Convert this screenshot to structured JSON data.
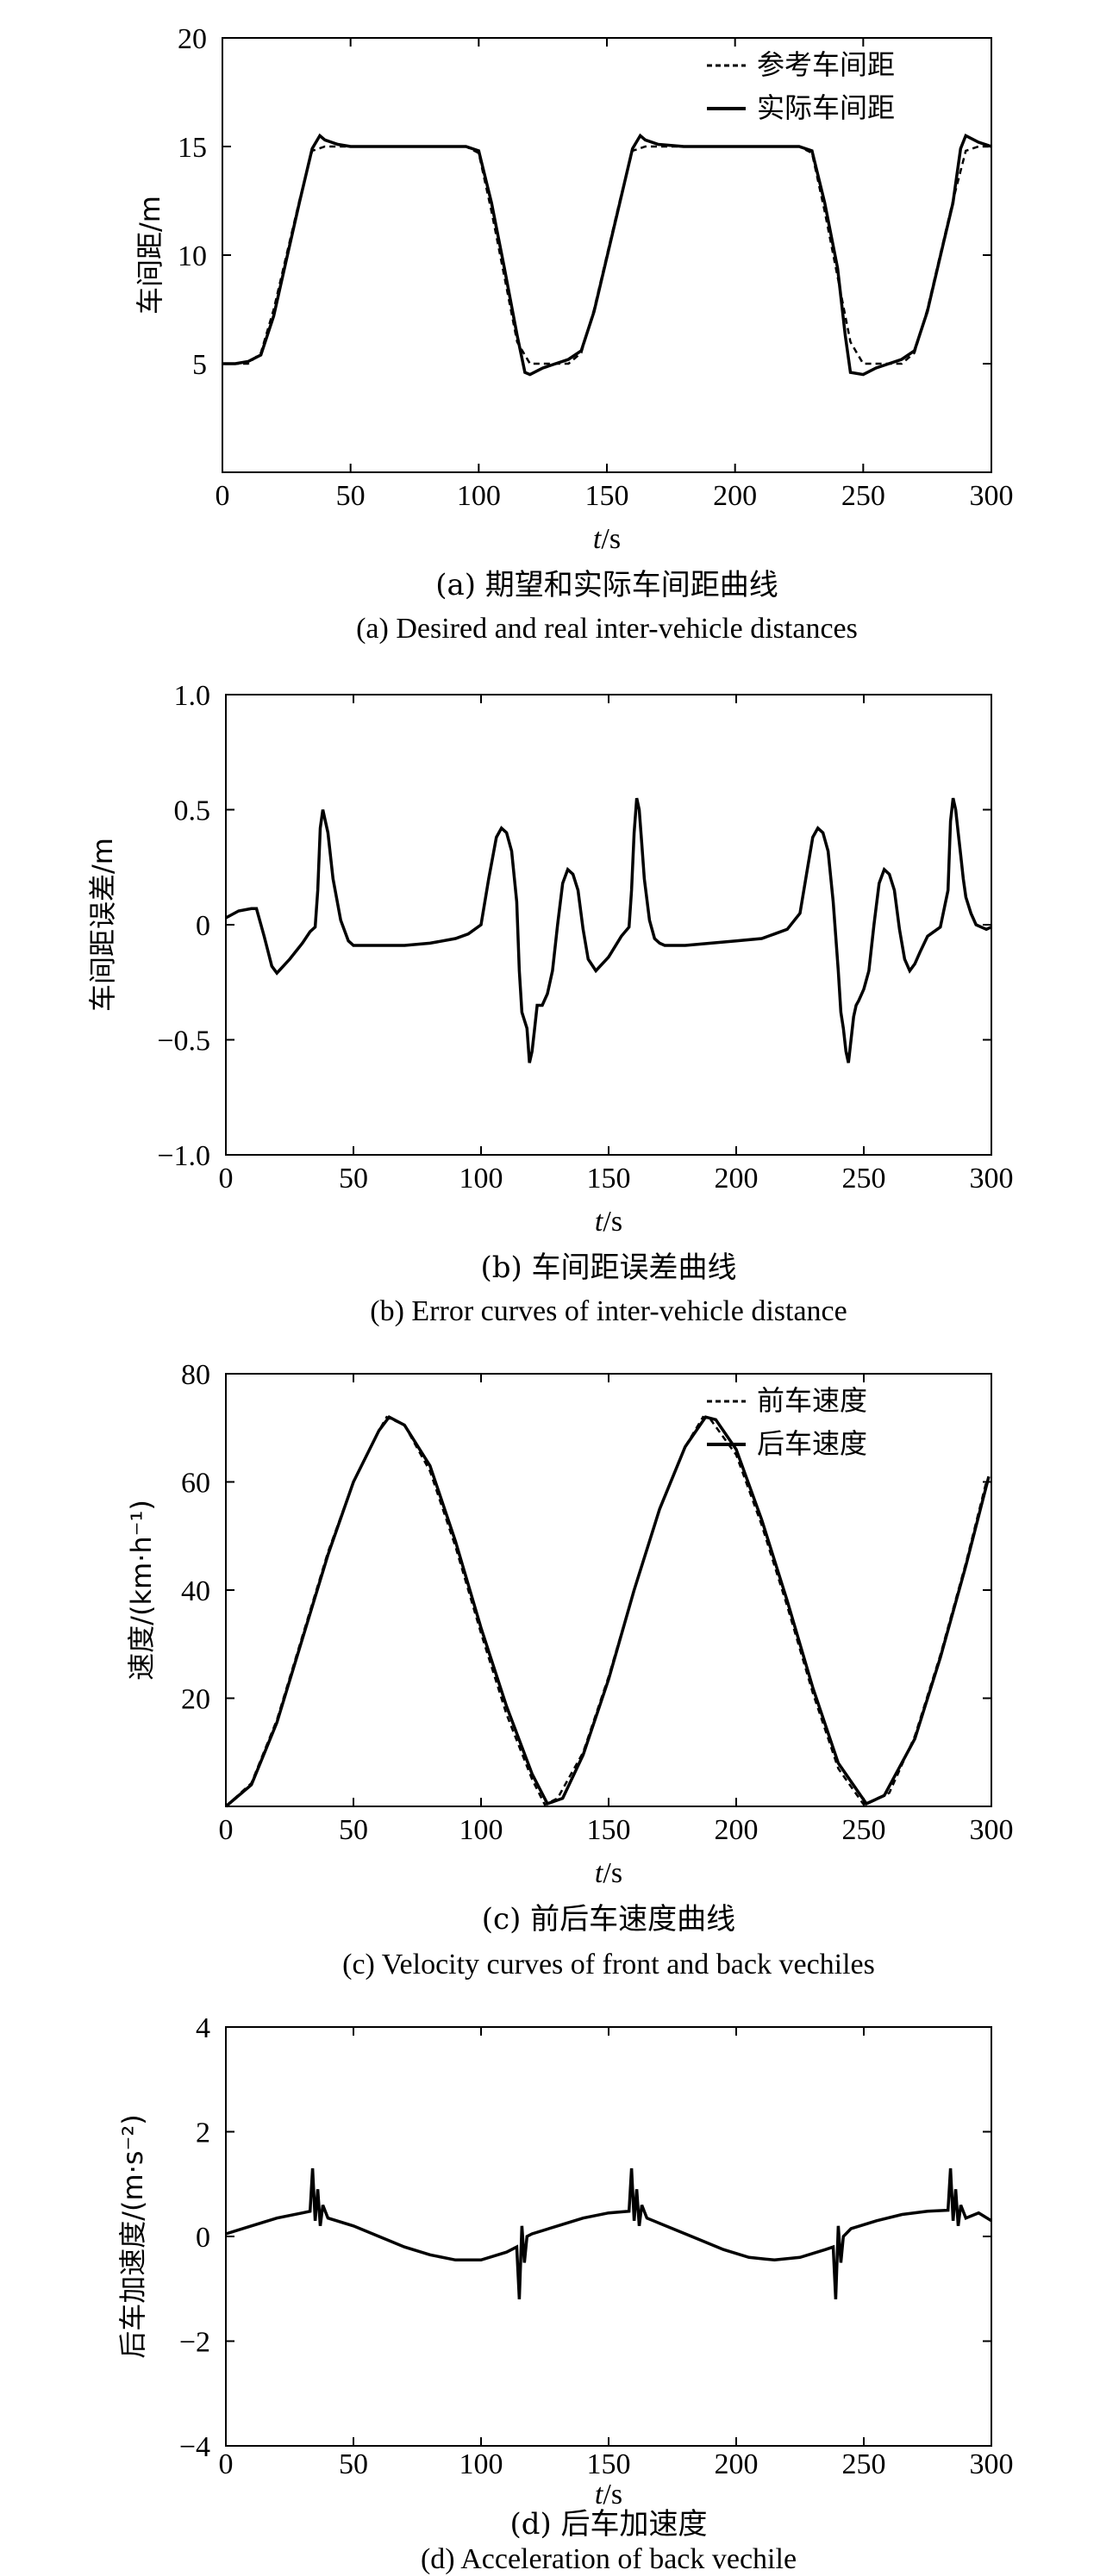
{
  "chart_data": [
    {
      "type": "line",
      "xlabel": "t/s",
      "ylabel": "车间距/m",
      "xlim": [
        0,
        300
      ],
      "ylim": [
        0,
        20
      ],
      "xticks": [
        "0",
        "50",
        "100",
        "150",
        "200",
        "250",
        "300"
      ],
      "yticks": [
        "5",
        "10",
        "15",
        "20"
      ],
      "caption_zh": "(a) 期望和实际车间距曲线",
      "caption_en": "(a) Desired and real inter-vehicle distances",
      "legend_position": "top-right",
      "series": [
        {
          "name": "参考车间距",
          "style": "dashed",
          "x": [
            0,
            5,
            10,
            15,
            20,
            25,
            30,
            35,
            40,
            45,
            50,
            60,
            70,
            80,
            90,
            95,
            100,
            105,
            110,
            115,
            120,
            125,
            130,
            135,
            140,
            145,
            150,
            155,
            160,
            165,
            170,
            180,
            190,
            200,
            210,
            220,
            225,
            230,
            235,
            240,
            245,
            250,
            255,
            260,
            265,
            270,
            275,
            280,
            285,
            290,
            295,
            300
          ],
          "y": [
            5,
            5,
            5,
            5.5,
            7.5,
            10,
            12.5,
            14.8,
            15,
            15,
            15,
            15,
            15,
            15,
            15,
            15,
            14.7,
            12,
            9,
            6,
            5,
            5,
            5,
            5,
            5.5,
            7.5,
            10,
            12.5,
            14.8,
            15,
            15,
            15,
            15,
            15,
            15,
            15,
            15,
            14.7,
            12,
            9,
            6,
            5,
            5,
            5,
            5,
            5.5,
            7.5,
            10,
            12.5,
            14.8,
            15,
            15
          ]
        },
        {
          "name": "实际车间距",
          "style": "solid",
          "x": [
            0,
            5,
            10,
            15,
            20,
            25,
            30,
            35,
            38,
            40,
            45,
            50,
            60,
            70,
            80,
            90,
            95,
            100,
            105,
            110,
            115,
            118,
            120,
            125,
            130,
            135,
            140,
            145,
            150,
            155,
            160,
            163,
            165,
            170,
            180,
            190,
            200,
            210,
            220,
            225,
            230,
            235,
            240,
            243,
            245,
            250,
            255,
            260,
            265,
            270,
            275,
            280,
            285,
            288,
            290,
            295,
            300
          ],
          "y": [
            5,
            5,
            5.1,
            5.4,
            7.2,
            9.8,
            12.4,
            14.9,
            15.5,
            15.3,
            15.1,
            15,
            15,
            15,
            15,
            15,
            15,
            14.8,
            12.4,
            9.4,
            6.3,
            4.6,
            4.5,
            4.8,
            5,
            5.2,
            5.6,
            7.4,
            9.9,
            12.4,
            14.9,
            15.5,
            15.3,
            15.1,
            15,
            15,
            15,
            15,
            15,
            15,
            14.8,
            12.4,
            9.4,
            6.3,
            4.6,
            4.5,
            4.8,
            5,
            5.2,
            5.6,
            7.4,
            9.9,
            12.4,
            14.9,
            15.5,
            15.2,
            15
          ]
        }
      ]
    },
    {
      "type": "line",
      "xlabel": "t/s",
      "ylabel": "车间距误差/m",
      "xlim": [
        0,
        300
      ],
      "ylim": [
        -1,
        1
      ],
      "xticks": [
        "0",
        "50",
        "100",
        "150",
        "200",
        "250",
        "300"
      ],
      "yticks": [
        "−1.0",
        "−0.5",
        "0",
        "0.5",
        "1.0"
      ],
      "caption_zh": "(b) 车间距误差曲线",
      "caption_en": "(b) Error curves of inter-vehicle distance",
      "series": [
        {
          "style": "solid",
          "x": [
            0,
            5,
            10,
            12,
            15,
            18,
            20,
            25,
            30,
            33,
            35,
            36,
            37,
            38,
            40,
            42,
            45,
            48,
            50,
            60,
            70,
            80,
            90,
            95,
            100,
            103,
            106,
            108,
            110,
            112,
            114,
            115,
            116,
            118,
            119,
            120,
            121,
            122,
            124,
            126,
            128,
            130,
            132,
            134,
            136,
            138,
            140,
            142,
            145,
            150,
            155,
            158,
            159,
            160,
            161,
            162,
            163,
            164,
            166,
            168,
            170,
            172,
            174,
            176,
            180,
            190,
            200,
            210,
            215,
            220,
            225,
            228,
            230,
            232,
            234,
            236,
            238,
            240,
            241,
            242,
            243,
            244,
            245,
            246,
            247,
            248,
            250,
            252,
            254,
            256,
            258,
            260,
            262,
            264,
            266,
            268,
            270,
            272,
            275,
            280,
            283,
            284,
            285,
            286,
            287,
            288,
            289,
            290,
            292,
            294,
            296,
            298,
            300
          ],
          "y": [
            0.03,
            0.06,
            0.07,
            0.07,
            -0.05,
            -0.18,
            -0.21,
            -0.15,
            -0.08,
            -0.03,
            -0.01,
            0.15,
            0.42,
            0.5,
            0.4,
            0.2,
            0.02,
            -0.07,
            -0.09,
            -0.09,
            -0.09,
            -0.08,
            -0.06,
            -0.04,
            0,
            0.2,
            0.38,
            0.42,
            0.4,
            0.32,
            0.1,
            -0.2,
            -0.38,
            -0.45,
            -0.6,
            -0.55,
            -0.45,
            -0.35,
            -0.35,
            -0.3,
            -0.2,
            0,
            0.18,
            0.24,
            0.22,
            0.15,
            -0.02,
            -0.15,
            -0.2,
            -0.14,
            -0.05,
            -0.01,
            0.15,
            0.4,
            0.55,
            0.5,
            0.35,
            0.2,
            0.02,
            -0.06,
            -0.08,
            -0.09,
            -0.09,
            -0.09,
            -0.09,
            -0.08,
            -0.07,
            -0.06,
            -0.04,
            -0.02,
            0.05,
            0.25,
            0.38,
            0.42,
            0.4,
            0.32,
            0.1,
            -0.2,
            -0.38,
            -0.45,
            -0.55,
            -0.6,
            -0.5,
            -0.4,
            -0.35,
            -0.33,
            -0.28,
            -0.2,
            0,
            0.18,
            0.24,
            0.22,
            0.15,
            -0.02,
            -0.15,
            -0.2,
            -0.17,
            -0.12,
            -0.05,
            -0.01,
            0.15,
            0.45,
            0.55,
            0.5,
            0.4,
            0.3,
            0.2,
            0.12,
            0.05,
            0,
            -0.01,
            -0.02,
            -0.01
          ]
        }
      ]
    },
    {
      "type": "line",
      "xlabel": "t/s",
      "ylabel": "速度/(km·h⁻¹)",
      "xlim": [
        0,
        300
      ],
      "ylim": [
        0,
        80
      ],
      "xticks": [
        "0",
        "50",
        "100",
        "150",
        "200",
        "250",
        "300"
      ],
      "yticks": [
        "20",
        "40",
        "60",
        "80"
      ],
      "caption_zh": "(c) 前后车速度曲线",
      "caption_en": "(c) Velocity curves of front and back vechiles",
      "legend_position": "top-right",
      "series": [
        {
          "name": "前车速度",
          "style": "dashed",
          "x": [
            0,
            10,
            20,
            30,
            40,
            50,
            60,
            63,
            70,
            80,
            90,
            100,
            110,
            120,
            125,
            130,
            140,
            150,
            160,
            170,
            180,
            187,
            190,
            200,
            210,
            220,
            230,
            240,
            250,
            260,
            270,
            280,
            290,
            298
          ],
          "y": [
            0,
            4.3,
            16,
            31.5,
            47,
            60,
            69.5,
            72,
            70.5,
            62,
            48,
            32,
            17,
            5,
            0.3,
            1.5,
            10,
            24,
            40,
            55,
            66.5,
            72,
            71.5,
            65,
            52,
            37,
            21,
            7,
            0.3,
            2.5,
            13,
            28,
            45,
            60
          ]
        },
        {
          "name": "后车速度",
          "style": "solid",
          "x": [
            0,
            10,
            20,
            30,
            40,
            50,
            60,
            64,
            70,
            80,
            90,
            100,
            110,
            120,
            126,
            132,
            140,
            150,
            160,
            170,
            180,
            188,
            192,
            200,
            210,
            220,
            230,
            240,
            251,
            258,
            270,
            280,
            290,
            299
          ],
          "y": [
            0,
            4,
            15.5,
            31,
            46.5,
            60,
            69.5,
            72,
            70.5,
            63,
            49,
            33,
            18.5,
            6,
            0.5,
            1.5,
            9.5,
            23.5,
            40,
            55,
            66.5,
            72,
            71.5,
            66,
            53,
            38,
            22,
            8,
            0.5,
            2,
            12.5,
            27.5,
            44.5,
            61
          ]
        }
      ]
    },
    {
      "type": "line",
      "xlabel": "t/s",
      "ylabel": "后车加速度/(m·s⁻²)",
      "xlim": [
        0,
        300
      ],
      "ylim": [
        -4,
        4
      ],
      "xticks": [
        "0",
        "50",
        "100",
        "150",
        "200",
        "250",
        "300"
      ],
      "yticks": [
        "−4",
        "−2",
        "0",
        "2",
        "4"
      ],
      "caption_zh": "(d) 后车加速度",
      "caption_en": "(d) Acceleration of back vechile",
      "series": [
        {
          "style": "solid",
          "x": [
            0,
            10,
            20,
            30,
            33,
            34,
            35,
            36,
            37,
            38,
            40,
            50,
            60,
            70,
            80,
            90,
            100,
            110,
            114,
            115,
            116,
            117,
            118,
            120,
            130,
            140,
            150,
            158,
            159,
            160,
            161,
            162,
            163,
            165,
            175,
            185,
            195,
            205,
            215,
            225,
            235,
            238,
            239,
            240,
            241,
            242,
            243,
            245,
            255,
            265,
            275,
            283,
            284,
            285,
            286,
            287,
            288,
            290,
            295,
            300
          ],
          "y": [
            0.05,
            0.2,
            0.35,
            0.45,
            0.48,
            1.3,
            0.3,
            0.9,
            0.2,
            0.6,
            0.35,
            0.2,
            0,
            -0.2,
            -0.35,
            -0.45,
            -0.45,
            -0.3,
            -0.2,
            -1.2,
            0.2,
            -0.5,
            0,
            0.05,
            0.2,
            0.35,
            0.45,
            0.48,
            1.3,
            0.3,
            0.9,
            0.2,
            0.6,
            0.35,
            0.15,
            -0.05,
            -0.25,
            -0.4,
            -0.45,
            -0.4,
            -0.25,
            -0.2,
            -1.2,
            0.2,
            -0.5,
            0,
            0.05,
            0.15,
            0.3,
            0.42,
            0.48,
            0.5,
            1.3,
            0.3,
            0.9,
            0.2,
            0.6,
            0.35,
            0.45,
            0.3
          ]
        }
      ]
    }
  ]
}
